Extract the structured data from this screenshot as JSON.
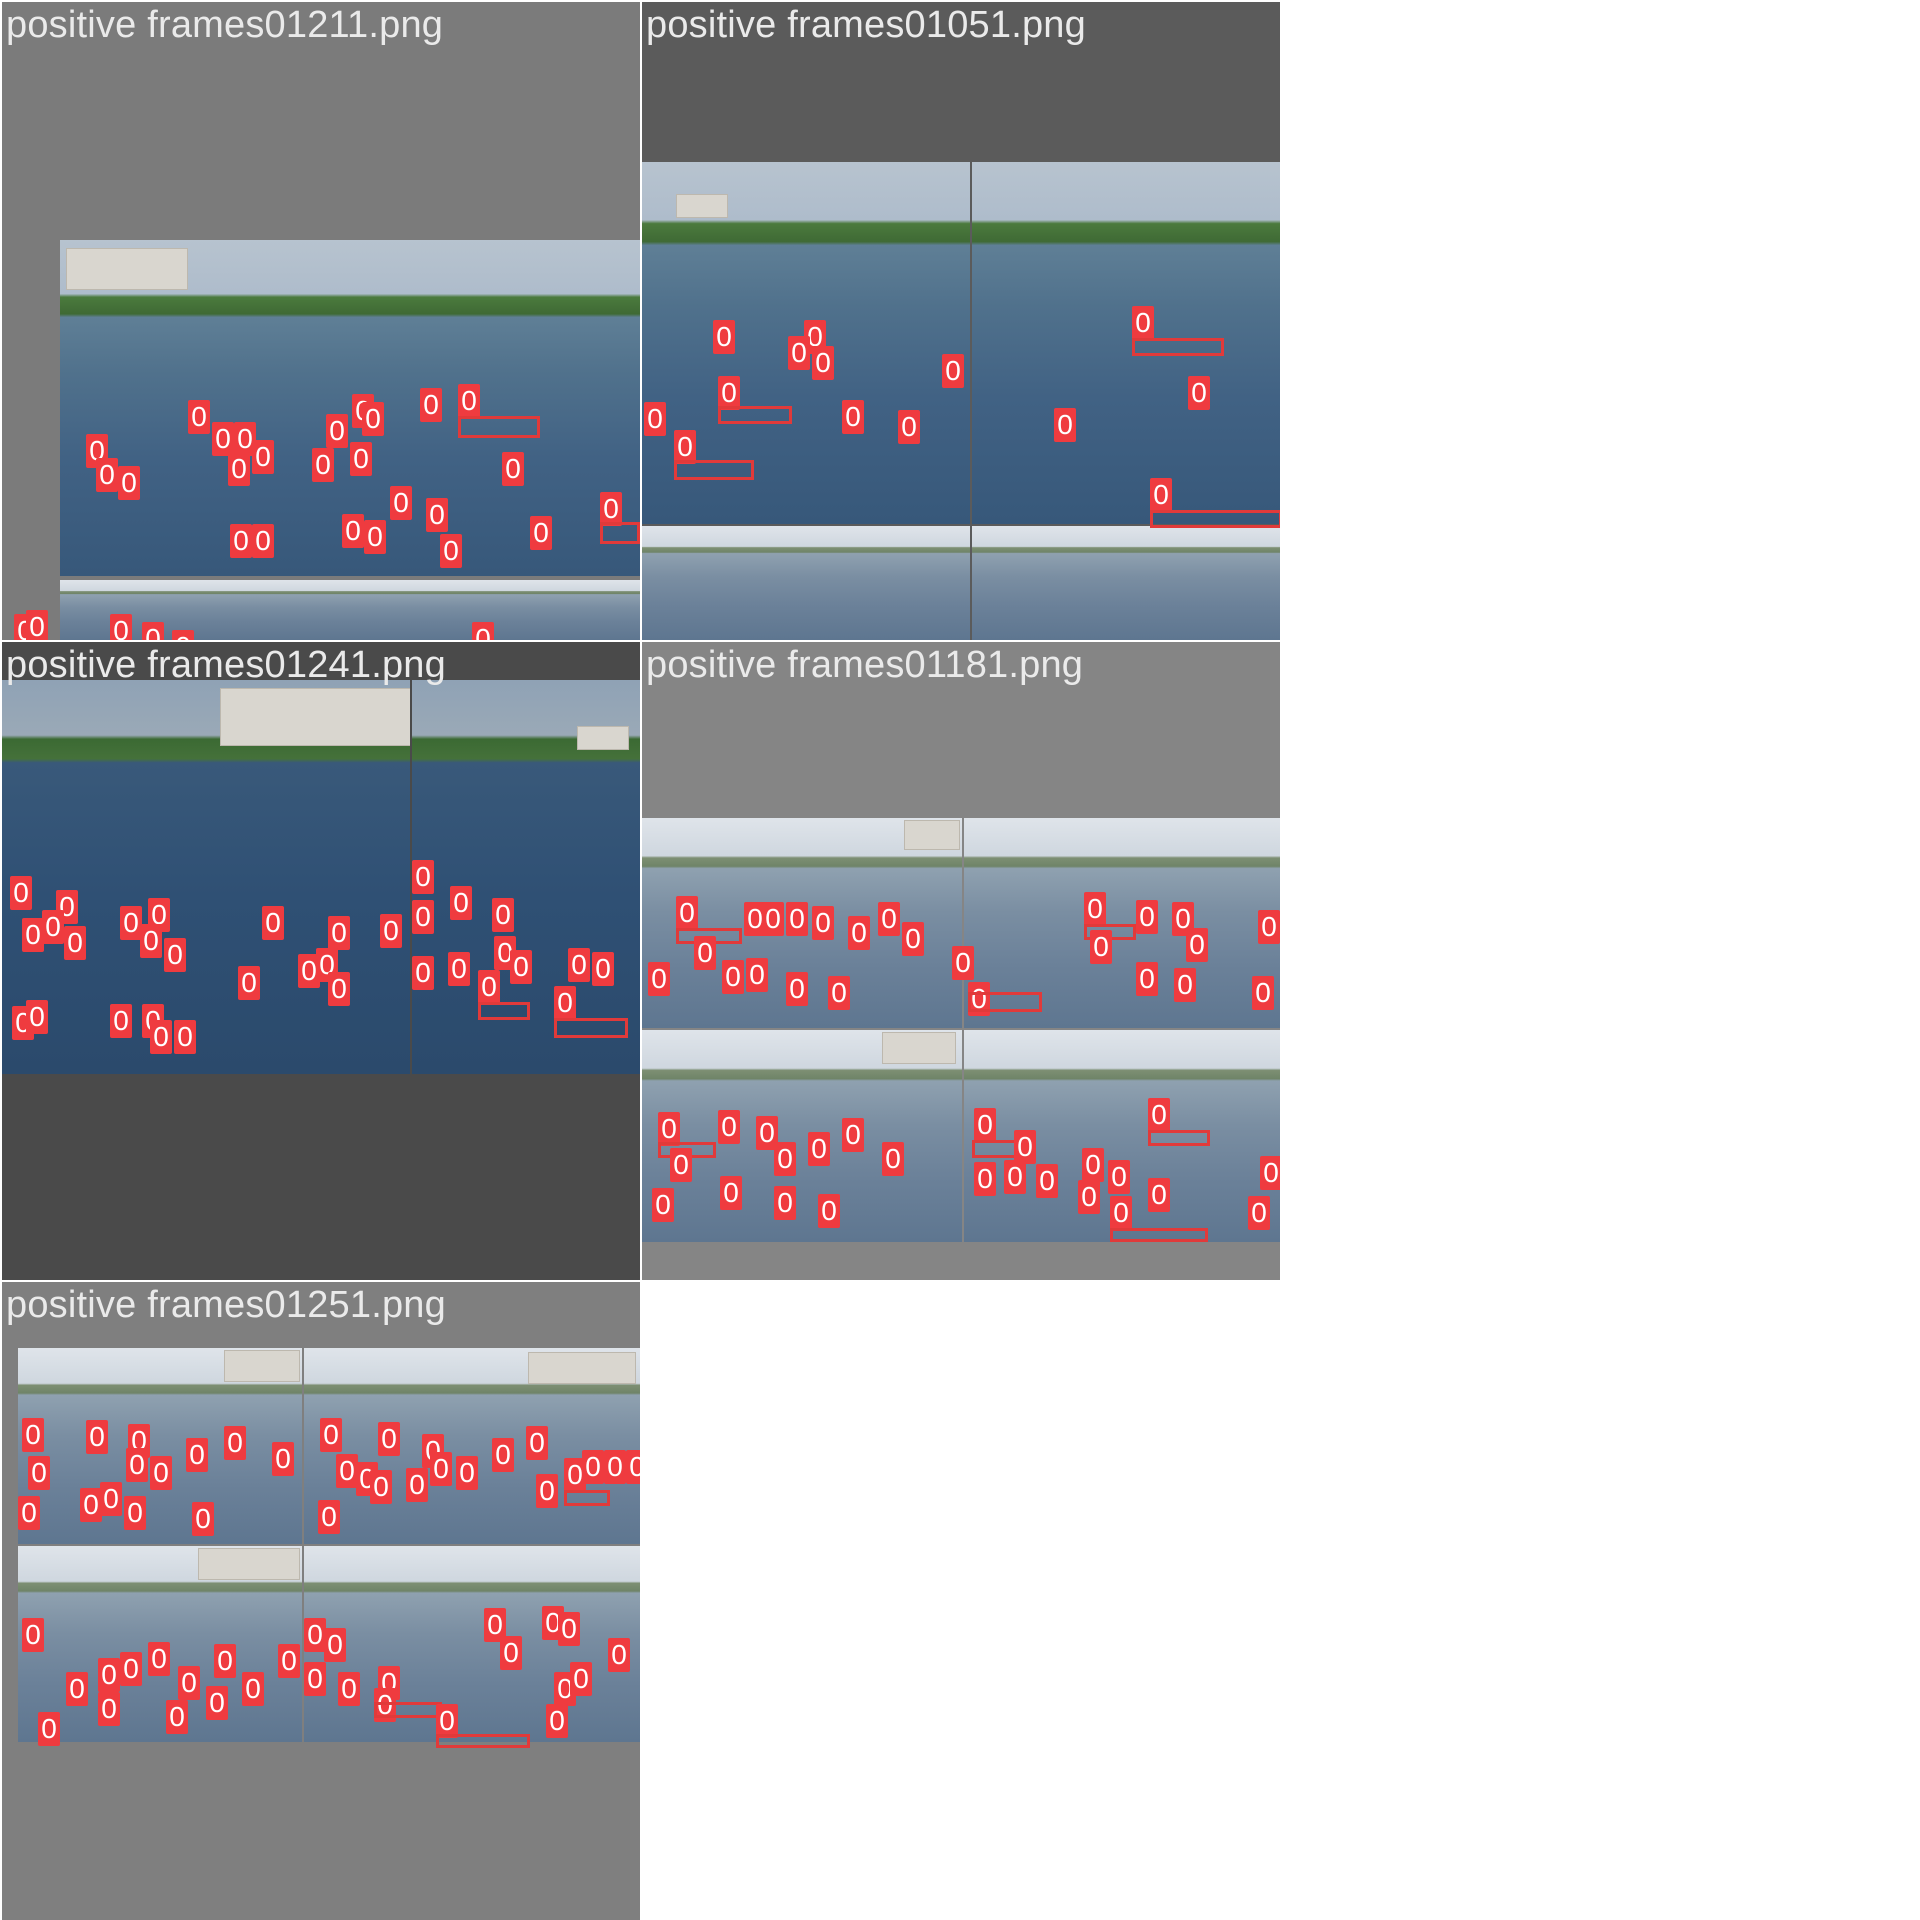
{
  "panels": [
    {
      "title": "positive frames01211.png",
      "bg": "#7b7b7b"
    },
    {
      "title": "positive frames01051.png",
      "bg": "#5b5b5b"
    },
    {
      "title": "positive frames01241.png",
      "bg": "#4a4a4a"
    },
    {
      "title": "positive frames01181.png",
      "bg": "#858585"
    },
    {
      "title": "positive frames01251.png",
      "bg": "#7f7f7f"
    }
  ],
  "detection_label": "0",
  "colors": {
    "detection": "#ef3b3f",
    "page_background": "#ffffff"
  }
}
